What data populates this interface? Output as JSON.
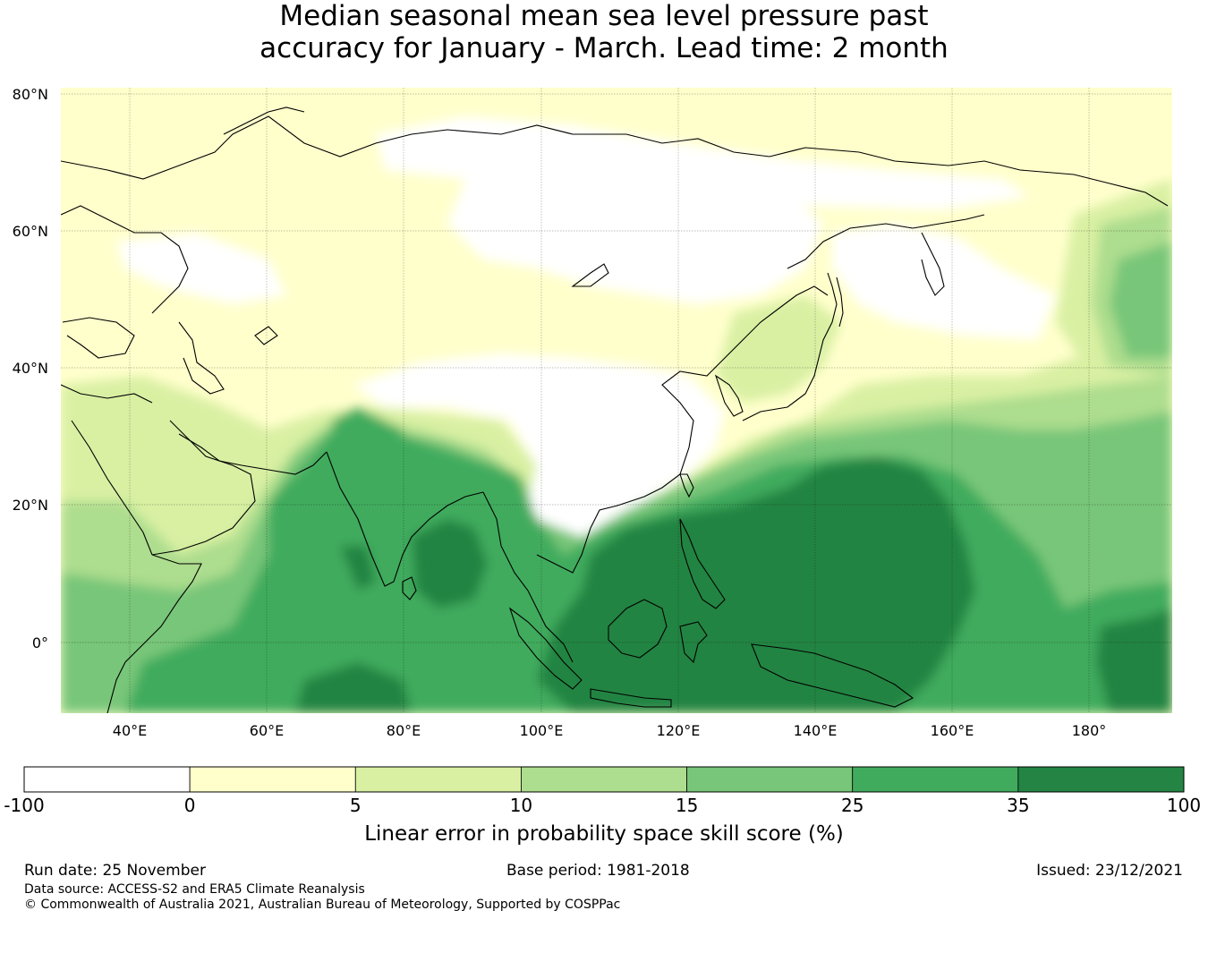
{
  "title": {
    "line1": "Median seasonal mean sea level pressure past",
    "line2": "accuracy for January - March. Lead time: 2 month"
  },
  "map": {
    "lat_labels": [
      "80°N",
      "60°N",
      "40°N",
      "20°N",
      "0°"
    ],
    "lon_labels": [
      "40°E",
      "60°E",
      "80°E",
      "100°E",
      "120°E",
      "140°E",
      "160°E",
      "180°"
    ],
    "lat_values": [
      80,
      60,
      40,
      20,
      0
    ],
    "lon_values": [
      40,
      60,
      80,
      100,
      120,
      140,
      160,
      180
    ],
    "extent": {
      "lon_min": 30,
      "lon_max": 192,
      "lat_min": -10,
      "lat_max": 81
    }
  },
  "colorbar": {
    "ticks": [
      "-100",
      "0",
      "5",
      "10",
      "15",
      "25",
      "35",
      "100"
    ],
    "colors": [
      "#ffffff",
      "#ffffcc",
      "#d9f0a3",
      "#addd8e",
      "#78c679",
      "#41ab5d",
      "#238443"
    ],
    "label": "Linear error in probability space skill score (%)"
  },
  "footer": {
    "run_date": "Run date: 25 November",
    "base_period": "Base period: 1981-2018",
    "issued": "Issued: 23/12/2021",
    "data_source": "Data source: ACCESS-S2 and ERA5 Climate Reanalysis",
    "copyright": "© Commonwealth of Australia 2021, Australian Bureau of Meteorology, Supported by COSPPac"
  }
}
